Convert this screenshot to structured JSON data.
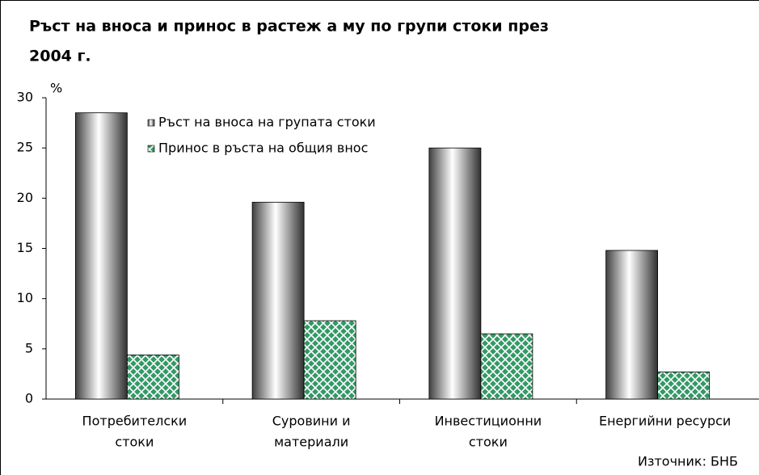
{
  "chart_data": {
    "type": "bar",
    "title": [
      "Ръст на вноса и принос в растеж а му по групи стоки през",
      "2004 г."
    ],
    "y_label": "%",
    "categories": [
      [
        "Потребителски",
        "стоки"
      ],
      [
        "Суровини и",
        "материали"
      ],
      [
        "Инвестиционни",
        "стоки"
      ],
      [
        "Енергийни ресурси"
      ]
    ],
    "series": [
      {
        "name": "Ръст на вноса на групата стоки",
        "color": "#a0a0a0",
        "values": [
          28.5,
          19.6,
          25.0,
          14.8
        ]
      },
      {
        "name": "Принос в ръста на общия внос",
        "color": "#339966",
        "values": [
          4.4,
          7.8,
          6.5,
          2.7
        ]
      }
    ],
    "ylim": [
      0,
      30
    ],
    "yticks": [
      0,
      5,
      10,
      15,
      20,
      25,
      30
    ],
    "source": "Източник: БНБ"
  }
}
